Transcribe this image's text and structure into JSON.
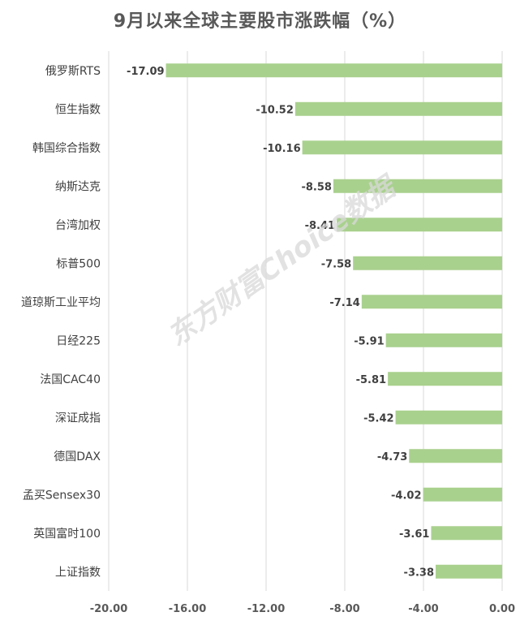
{
  "chart_data": {
    "type": "bar",
    "orientation": "horizontal",
    "title": "9月以来全球主要股市涨跌幅（%）",
    "categories": [
      "俄罗斯RTS",
      "恒生指数",
      "韩国综合指数",
      "纳斯达克",
      "台湾加权",
      "标普500",
      "道琼斯工业平均",
      "日经225",
      "法国CAC40",
      "深证成指",
      "德国DAX",
      "孟买Sensex30",
      "英国富时100",
      "上证指数"
    ],
    "values": [
      -17.09,
      -10.52,
      -10.16,
      -8.58,
      -8.41,
      -7.58,
      -7.14,
      -5.91,
      -5.81,
      -5.42,
      -4.73,
      -4.02,
      -3.61,
      -3.38
    ],
    "data_labels": [
      "-17.09",
      "-10.52",
      "-10.16",
      "-8.58",
      "-8.41",
      "-7.58",
      "-7.14",
      "-5.91",
      "-5.81",
      "-5.42",
      "-4.73",
      "-4.02",
      "-3.61",
      "-3.38"
    ],
    "xlim": [
      -20,
      0
    ],
    "x_ticks": [
      -20,
      -16,
      -12,
      -8,
      -4,
      0
    ],
    "x_tick_labels": [
      "-20.00",
      "-16.00",
      "-12.00",
      "-8.00",
      "-4.00",
      "0.00"
    ],
    "xlabel": "",
    "ylabel": "",
    "grid": true,
    "bar_color": "#a9d18e",
    "grid_color": "#d9d9d9",
    "text_color": "#595959",
    "label_color": "#404040"
  },
  "watermark": "东方财富Choice数据"
}
